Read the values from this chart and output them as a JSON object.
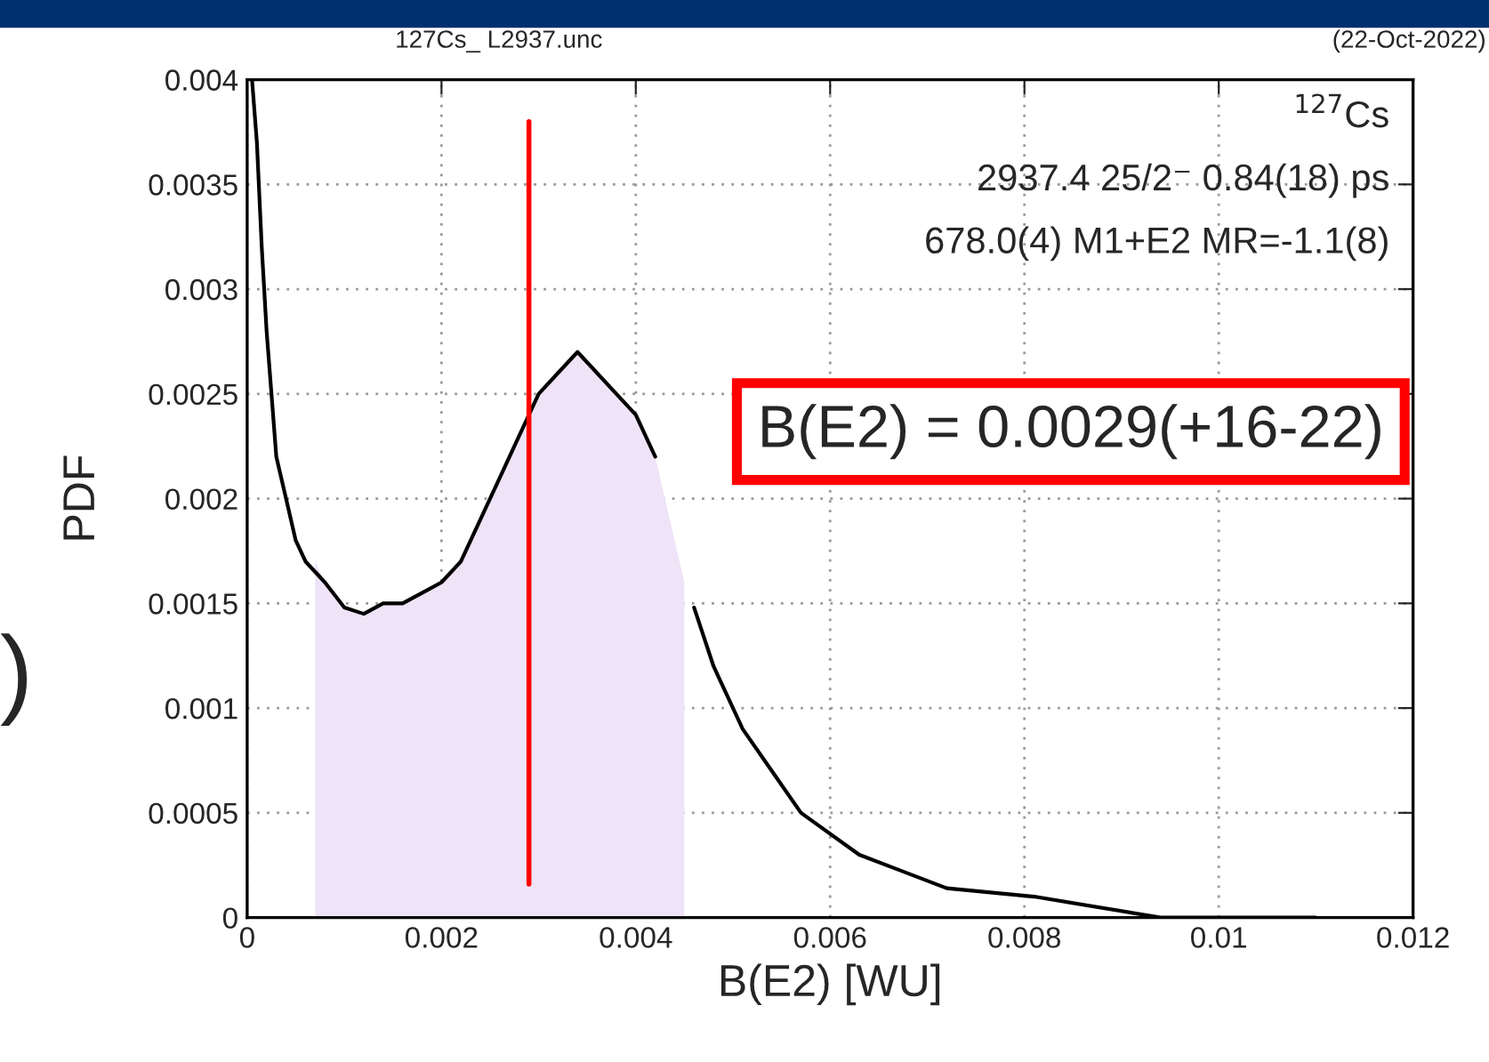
{
  "chart_data": {
    "type": "line",
    "title": "127Cs_ L2937.unc",
    "subtitle": "(22-Oct-2022)",
    "xlabel": "B(E2) [WU]",
    "ylabel": "PDF",
    "x": [
      5e-05,
      0.0001,
      0.00015,
      0.0002,
      0.0003,
      0.0004,
      0.0005,
      0.0006,
      0.0008,
      0.001,
      0.0012,
      0.0014,
      0.0016,
      0.0018,
      0.002,
      0.0022,
      0.0024,
      0.0026,
      0.0028,
      0.003,
      0.0032,
      0.0034,
      0.0036,
      0.0038,
      0.004,
      0.0042,
      0.0044,
      0.0046,
      0.0048,
      0.0051,
      0.0054,
      0.0057,
      0.0063,
      0.0072,
      0.0081,
      0.0094,
      0.011
    ],
    "series": [
      {
        "type": "area",
        "color": "#efe3f7",
        "x": [
          0.0007,
          0.0008,
          0.001,
          0.0012,
          0.0014,
          0.0016,
          0.0018,
          0.002,
          0.0022,
          0.0024,
          0.0026,
          0.0028,
          0.003,
          0.0032,
          0.0034,
          0.0036,
          0.0038,
          0.004,
          0.0042,
          0.0045
        ],
        "values": [
          0.0017,
          0.0016,
          0.00148,
          0.00145,
          0.0015,
          0.0015,
          0.00155,
          0.0016,
          0.0017,
          0.0019,
          0.0021,
          0.0023,
          0.0025,
          0.0026,
          0.0027,
          0.0026,
          0.0025,
          0.0024,
          0.0022,
          0.0016
        ]
      },
      {
        "color": "#000000",
        "values": [
          0.004,
          0.0037,
          0.0032,
          0.0028,
          0.0022,
          0.002,
          0.0018,
          0.0017,
          0.0016,
          0.00148,
          0.00145,
          0.0015,
          0.0015,
          0.00155,
          0.0016,
          0.0017,
          0.0019,
          0.0021,
          0.0023,
          0.0025,
          0.0026,
          0.0027,
          0.0026,
          0.0025,
          0.0024,
          0.0022,
          null,
          0.00148,
          0.0012,
          0.0009,
          0.0007,
          0.0005,
          0.0003,
          0.00014,
          0.0001,
          0,
          0
        ]
      }
    ],
    "xlim": [
      0,
      0.012
    ],
    "xticks": [
      0,
      0.002,
      0.004,
      0.006,
      0.008,
      0.01,
      0.012
    ],
    "ylim": [
      0,
      0.004
    ],
    "yticks": [
      0,
      0.0005,
      0.001,
      0.0015,
      0.002,
      0.0025,
      0.003,
      0.0035,
      0.004
    ],
    "grid": true,
    "line_style": "solid",
    "marker": "none",
    "ref_lines": [
      {
        "axis": "x",
        "value": 0.0029,
        "color": "#ff0000"
      }
    ],
    "annotations": [
      "$^{127}$Cs",
      "2937.4 25/2⁻ 0.84(18) ps",
      "678.0(4) M1+E2 MR=-1.1(8)",
      "B(E2) = 0.0029(+16-22)",
      ")"
    ]
  }
}
